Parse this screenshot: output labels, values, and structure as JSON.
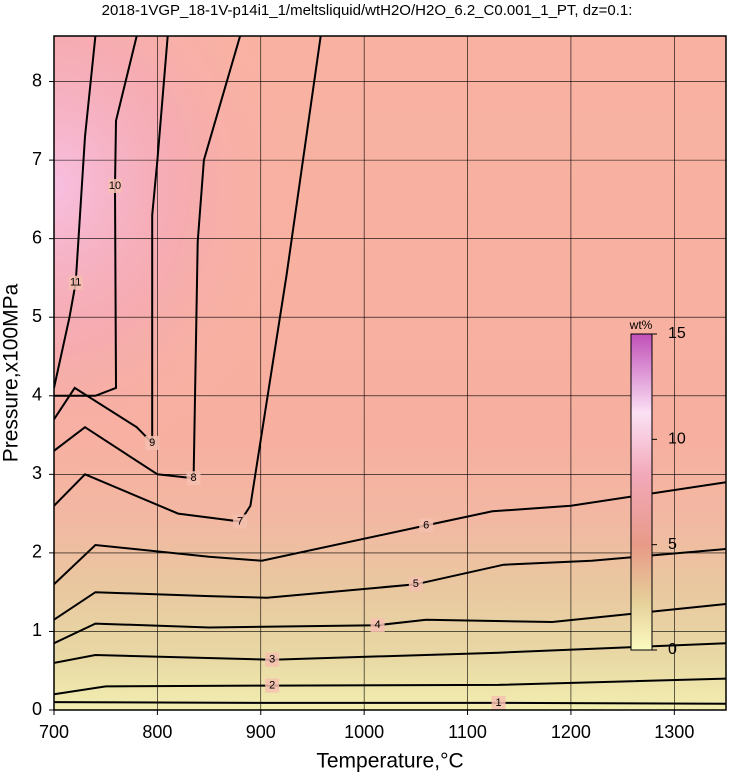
{
  "chart_data": {
    "type": "contour",
    "title": "2018-1VGP_18-1V-p14i1_1/meltsliquid/wtH2O/H2O_6.2_C0.001_1_PT, dz=0.1:",
    "xlabel": "Temperature,°C",
    "ylabel": "Pressure,x100MPa",
    "xlim": [
      700,
      1350
    ],
    "ylim": [
      0,
      8.58
    ],
    "xticks": [
      700,
      800,
      900,
      1000,
      1100,
      1200,
      1300
    ],
    "yticks": [
      0,
      1,
      2,
      3,
      4,
      5,
      6,
      7,
      8
    ],
    "grid": true,
    "colorbar": {
      "label": "wt%",
      "lim": [
        0,
        15
      ],
      "ticks": [
        0,
        5,
        10,
        15
      ]
    },
    "contours": [
      {
        "level": 1,
        "x": [
          700,
          900,
          1130,
          1350
        ],
        "y": [
          0.1,
          0.09,
          0.09,
          0.08
        ]
      },
      {
        "level": 2,
        "x": [
          700,
          750,
          911,
          1130,
          1350
        ],
        "y": [
          0.2,
          0.3,
          0.31,
          0.32,
          0.4
        ]
      },
      {
        "level": 3,
        "x": [
          700,
          740,
          911,
          1130,
          1350
        ],
        "y": [
          0.6,
          0.7,
          0.64,
          0.73,
          0.85
        ]
      },
      {
        "level": 4,
        "x": [
          700,
          740,
          850,
          1013,
          1060,
          1182,
          1350
        ],
        "y": [
          0.85,
          1.1,
          1.05,
          1.08,
          1.15,
          1.12,
          1.35
        ]
      },
      {
        "level": 5,
        "x": [
          700,
          740,
          850,
          906,
          1050,
          1135,
          1220,
          1350
        ],
        "y": [
          1.15,
          1.5,
          1.45,
          1.43,
          1.6,
          1.85,
          1.9,
          2.05
        ]
      },
      {
        "level": 6,
        "x": [
          700,
          740,
          850,
          901,
          1060,
          1124,
          1200,
          1350
        ],
        "y": [
          1.6,
          2.1,
          1.95,
          1.9,
          2.35,
          2.53,
          2.6,
          2.9
        ]
      },
      {
        "level": 7,
        "x": [
          700,
          730,
          820,
          880,
          890,
          925,
          958
        ],
        "y": [
          2.6,
          3.0,
          2.5,
          2.4,
          2.6,
          5.54,
          8.58
        ]
      },
      {
        "level": 8,
        "x": [
          700,
          730,
          800,
          835,
          839,
          845,
          880
        ],
        "y": [
          3.3,
          3.6,
          3.0,
          2.95,
          5.96,
          7.0,
          8.58
        ]
      },
      {
        "level": 9,
        "x": [
          700,
          720,
          780,
          795,
          795,
          800,
          810
        ],
        "y": [
          3.7,
          4.1,
          3.6,
          3.4,
          6.3,
          7.0,
          8.58
        ]
      },
      {
        "level": 10,
        "x": [
          700,
          740,
          760,
          759,
          760,
          780
        ],
        "y": [
          4.0,
          4.0,
          4.1,
          6.67,
          7.5,
          8.58
        ]
      },
      {
        "level": 11,
        "x": [
          700,
          715,
          721,
          730,
          740
        ],
        "y": [
          4.1,
          5.0,
          5.44,
          7.3,
          8.58
        ]
      }
    ]
  }
}
